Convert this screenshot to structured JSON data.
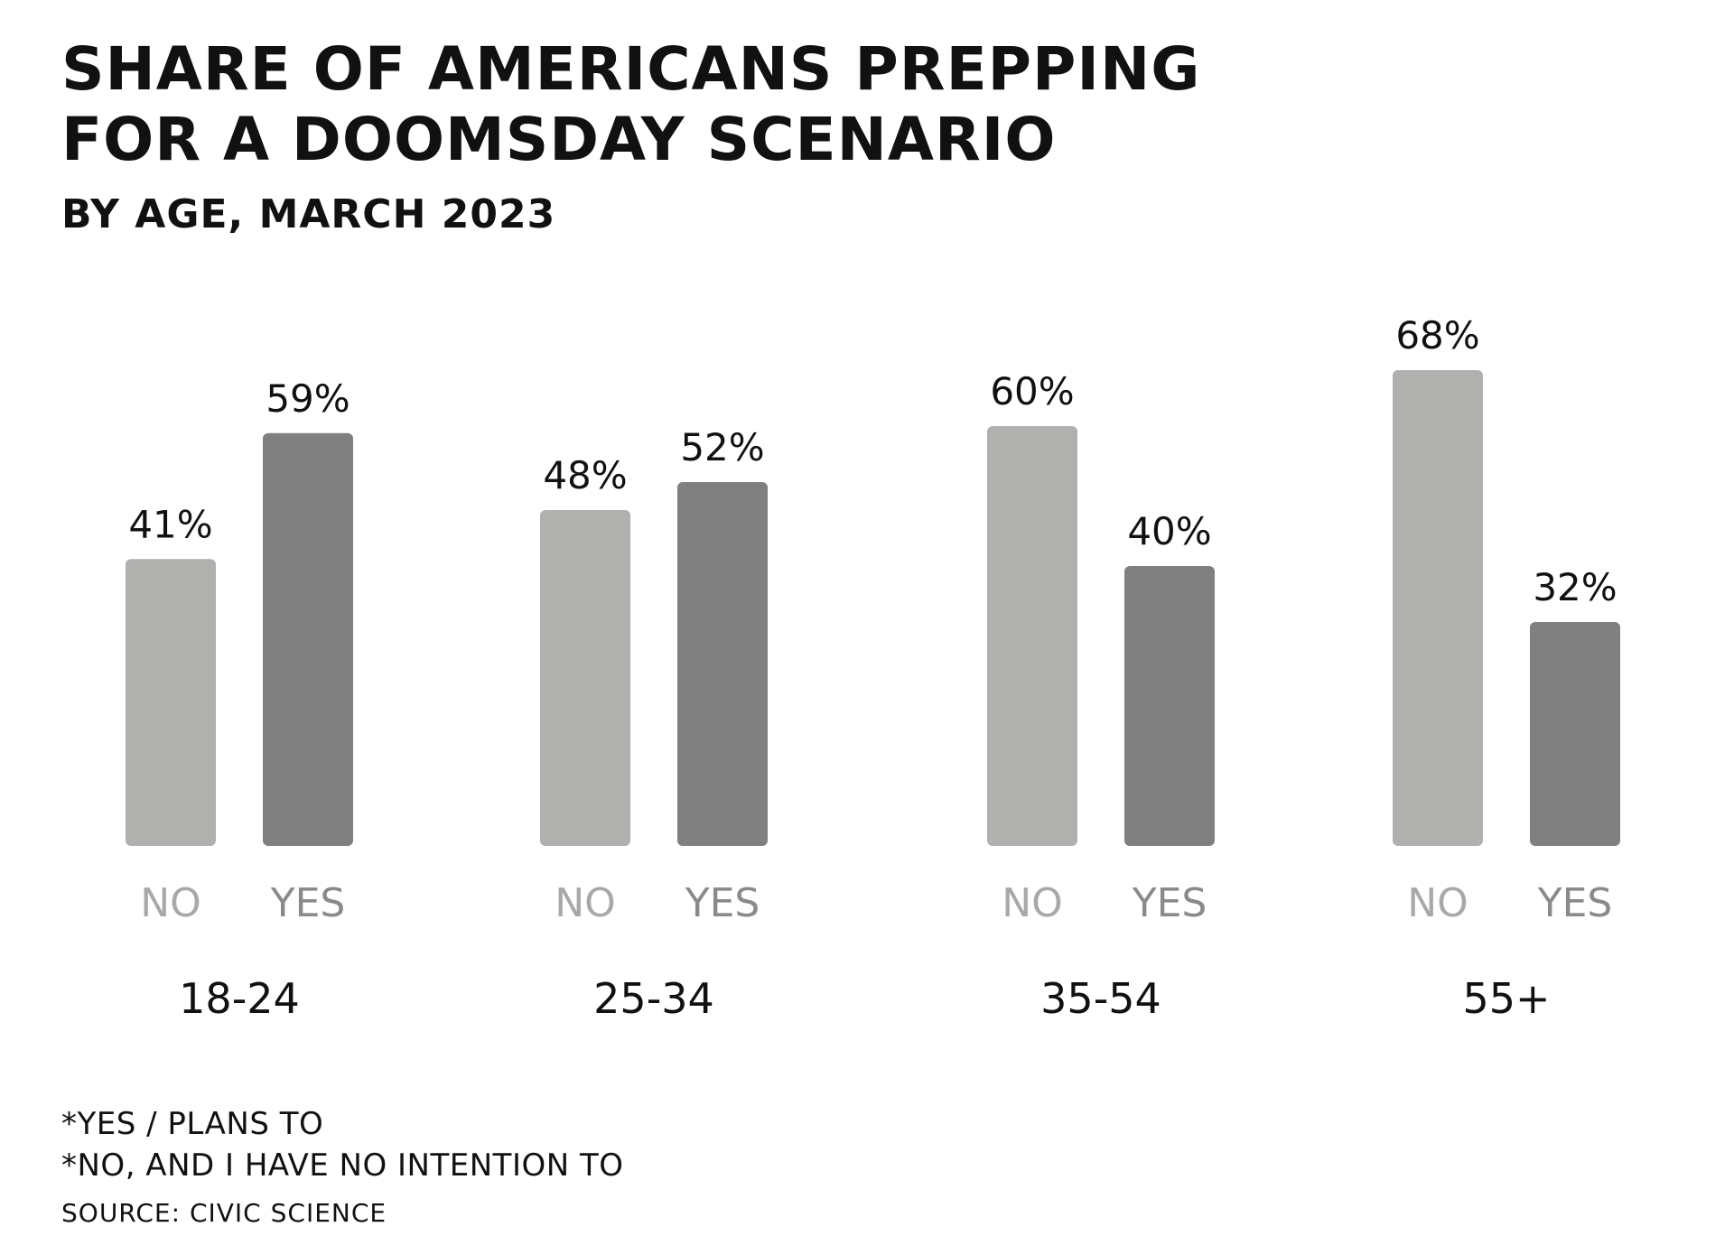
{
  "chart_data": {
    "type": "bar",
    "title": "SHARE OF AMERICANS PREPPING FOR A DOOMSDAY SCENARIO",
    "subtitle": "BY AGE, MARCH 2023",
    "categories": [
      "18-24",
      "25-34",
      "35-54",
      "55+"
    ],
    "series": [
      {
        "name": "NO",
        "values": [
          41,
          48,
          60,
          68
        ],
        "data_labels": [
          "41%",
          "48%",
          "60%",
          "68%"
        ]
      },
      {
        "name": "YES",
        "values": [
          59,
          52,
          40,
          32
        ],
        "data_labels": [
          "59%",
          "52%",
          "40%",
          "32%"
        ]
      }
    ],
    "ylim": [
      0,
      100
    ],
    "grid": false,
    "axes_visible": false,
    "colors": {
      "NO": "#b0b0af",
      "YES": "#808080",
      "no_label": "#a8a8a8",
      "yes_label": "#8a8a8a"
    }
  },
  "notes": [
    "*YES / PLANS TO",
    "*NO, AND I HAVE NO INTENTION TO"
  ],
  "source": "SOURCE: CIVIC SCIENCE"
}
